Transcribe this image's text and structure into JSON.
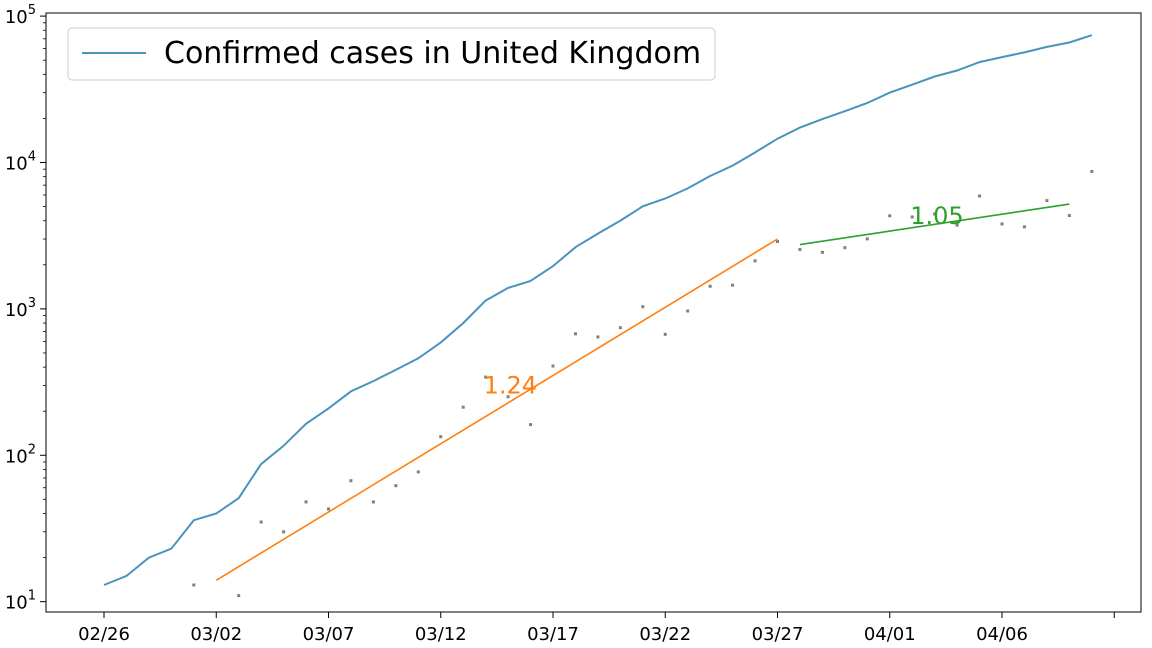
{
  "chart_data": {
    "type": "line",
    "title": "",
    "xlabel": "",
    "ylabel": "",
    "yscale": "log",
    "ylim": [
      8.5,
      105000
    ],
    "y_ticks": [
      {
        "value": 10,
        "base": "10",
        "exp": "1"
      },
      {
        "value": 100,
        "base": "10",
        "exp": "2"
      },
      {
        "value": 1000,
        "base": "10",
        "exp": "3"
      },
      {
        "value": 10000,
        "base": "10",
        "exp": "4"
      },
      {
        "value": 100000,
        "base": "10",
        "exp": "5"
      }
    ],
    "x_ticks": [
      "02/26",
      "03/02",
      "03/07",
      "03/12",
      "03/17",
      "03/22",
      "03/27",
      "04/01",
      "04/06",
      ""
    ],
    "grid": false,
    "legend": {
      "placement": "top-left",
      "entries": [
        {
          "label": "Confirmed cases in United Kingdom",
          "color": "#4b93bf"
        }
      ]
    },
    "x": [
      "02/26",
      "02/27",
      "02/28",
      "02/29",
      "03/01",
      "03/02",
      "03/03",
      "03/04",
      "03/05",
      "03/06",
      "03/07",
      "03/08",
      "03/09",
      "03/10",
      "03/11",
      "03/12",
      "03/13",
      "03/14",
      "03/15",
      "03/16",
      "03/17",
      "03/18",
      "03/19",
      "03/20",
      "03/21",
      "03/22",
      "03/23",
      "03/24",
      "03/25",
      "03/26",
      "03/27",
      "03/28",
      "03/29",
      "03/30",
      "03/31",
      "04/01",
      "04/02",
      "04/03",
      "04/04",
      "04/05",
      "04/06",
      "04/07",
      "04/08",
      "04/09",
      "04/10"
    ],
    "series": [
      {
        "name": "Confirmed cases in United Kingdom",
        "kind": "line",
        "color": "#4b93bf",
        "values": [
          13,
          15,
          20,
          23,
          36,
          40,
          51,
          87,
          116,
          164,
          209,
          273,
          321,
          383,
          460,
          590,
          800,
          1140,
          1390,
          1550,
          1960,
          2640,
          3270,
          4010,
          5020,
          5680,
          6650,
          8080,
          9530,
          11700,
          14550,
          17300,
          19800,
          22400,
          25500,
          30000,
          34000,
          38700,
          42500,
          48500,
          52500,
          56500,
          61600,
          66000,
          74000
        ]
      },
      {
        "name": "",
        "kind": "scatter",
        "color": "#808080",
        "x": [
          "03/01",
          "03/03",
          "03/04",
          "03/05",
          "03/06",
          "03/07",
          "03/08",
          "03/09",
          "03/10",
          "03/11",
          "03/12",
          "03/13",
          "03/14",
          "03/15",
          "03/16",
          "03/17",
          "03/18",
          "03/19",
          "03/20",
          "03/21",
          "03/22",
          "03/23",
          "03/24",
          "03/25",
          "03/26",
          "03/27",
          "03/28",
          "03/29",
          "03/30",
          "03/31",
          "04/01",
          "04/02",
          "04/03",
          "04/04",
          "04/05",
          "04/06",
          "04/07",
          "04/08",
          "04/09",
          "04/10"
        ],
        "values": [
          13,
          11,
          35,
          30,
          48,
          43,
          67,
          48,
          62,
          77,
          134,
          213,
          342,
          251,
          162,
          407,
          676,
          643,
          744,
          1035,
          670,
          967,
          1427,
          1452,
          2129,
          2885,
          2546,
          2433,
          2619,
          3009,
          4324,
          4244,
          4450,
          3735,
          5903,
          3802,
          3634,
          5491,
          4344,
          8681
        ]
      },
      {
        "name": "",
        "kind": "fit",
        "color": "#ff7f0e",
        "x": [
          "03/02",
          "03/27"
        ],
        "values": [
          14,
          3000
        ]
      },
      {
        "name": "",
        "kind": "fit",
        "color": "#2ca02c",
        "x": [
          "03/28",
          "04/09"
        ],
        "values": [
          2750,
          5200
        ]
      }
    ],
    "annotations": [
      {
        "text": "1.24",
        "x": "03/14",
        "y": 300,
        "color": "#ff7f0e"
      },
      {
        "text": "1.05",
        "x": "04/02",
        "y": 4300,
        "color": "#2ca02c"
      }
    ]
  }
}
